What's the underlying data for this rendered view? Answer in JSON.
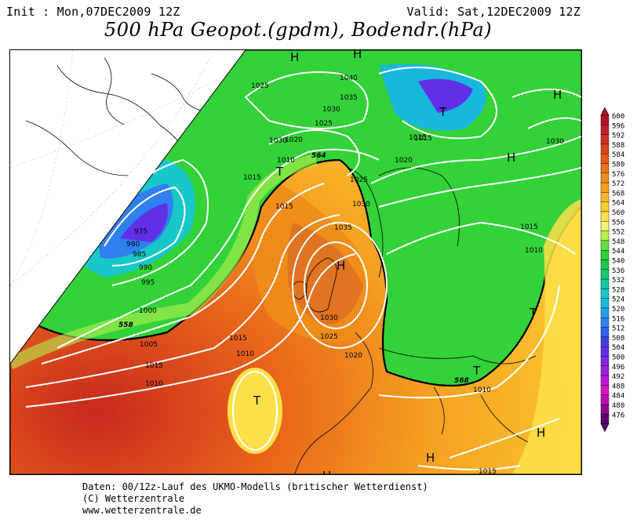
{
  "header": {
    "init": "Init : Mon,07DEC2009 12Z",
    "valid": "Valid: Sat,12DEC2009 12Z",
    "title": "500 hPa Geopot.(gpdm), Bodendr.(hPa)"
  },
  "footer": {
    "line1": "Daten: 00/12z-Lauf des UKMO-Modells (britischer Wetterdienst)",
    "line2": "(C) Wetterzentrale",
    "line3": "www.wetterzentrale.de"
  },
  "scale": {
    "values": [
      "600",
      "596",
      "592",
      "588",
      "584",
      "580",
      "576",
      "572",
      "568",
      "564",
      "560",
      "556",
      "552",
      "548",
      "544",
      "540",
      "536",
      "532",
      "528",
      "524",
      "520",
      "516",
      "512",
      "508",
      "504",
      "500",
      "496",
      "492",
      "488",
      "484",
      "480",
      "476"
    ],
    "colors": [
      "#b0122a",
      "#c21e2a",
      "#d03024",
      "#d8431e",
      "#e05a1a",
      "#e87418",
      "#f08c1a",
      "#f5a021",
      "#f8b628",
      "#fbcb30",
      "#fde04a",
      "#fdf078",
      "#b5f050",
      "#66e040",
      "#33d238",
      "#1ec850",
      "#18c878",
      "#18c8a0",
      "#18c8c8",
      "#18b8dc",
      "#20a0e8",
      "#3080f0",
      "#3860f0",
      "#4040e0",
      "#6030e8",
      "#8028e8",
      "#a020e0",
      "#c018d8",
      "#d818c8",
      "#c010b0",
      "#900890",
      "#600070"
    ]
  },
  "pressure_labels": [
    "1040",
    "1035",
    "1030",
    "1025",
    "1030",
    "1025",
    "1020",
    "1010",
    "1015",
    "1015",
    "1025",
    "1030",
    "1035",
    "1030",
    "1025",
    "1020",
    "1015",
    "1010",
    "1005",
    "1000",
    "995",
    "990",
    "985",
    "980",
    "975",
    "1015",
    "1010",
    "1015",
    "1010",
    "1015",
    "1010",
    "1015",
    "1030",
    "1020",
    "1015"
  ],
  "pressure_systems": [
    "H",
    "H",
    "H",
    "H",
    "H",
    "H",
    "H",
    "H",
    "T",
    "T",
    "T",
    "T",
    "T"
  ],
  "geopotential_labels": [
    "564",
    "558",
    "568"
  ]
}
